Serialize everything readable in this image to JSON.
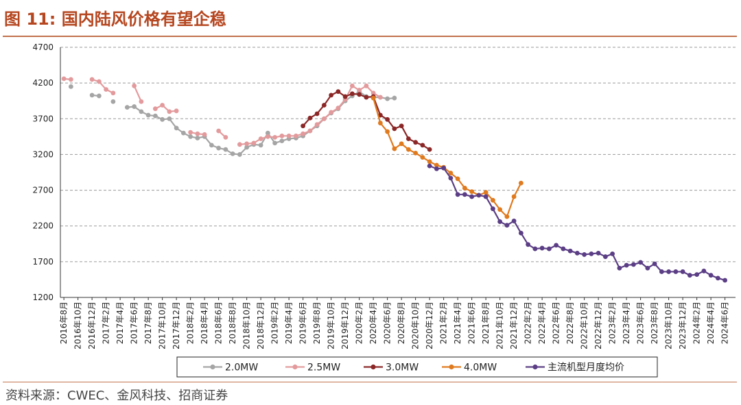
{
  "header": {
    "title": "图 11:  国内陆风价格有望企稳"
  },
  "footer": {
    "source": "资料来源：CWEC、金风科技、招商证券"
  },
  "chart_data": {
    "type": "line",
    "y_ticks": [
      "4700",
      "4200",
      "3700",
      "3200",
      "2700",
      "2200",
      "1700",
      "1200"
    ],
    "x_tick_labels": [
      "2016年8月",
      "2016年10月",
      "2016年12月",
      "2017年2月",
      "2017年4月",
      "2017年6月",
      "2017年8月",
      "2017年10月",
      "2017年12月",
      "2018年2月",
      "2018年4月",
      "2018年6月",
      "2018年8月",
      "2018年10月",
      "2018年12月",
      "2019年2月",
      "2019年4月",
      "2019年6月",
      "2019年8月",
      "2019年10月",
      "2019年12月",
      "2020年2月",
      "2020年4月",
      "2020年6月",
      "2020年8月",
      "2020年10月",
      "2020年12月",
      "2021年2月",
      "2021年4月",
      "2021年6月",
      "2021年8月",
      "2021年10月",
      "2021年12月",
      "2022年2月",
      "2022年4月",
      "2022年6月",
      "2022年8月",
      "2022年10月",
      "2022年12月",
      "2023年2月",
      "2023年4月",
      "2023年6月",
      "2023年8月",
      "2023年10月",
      "2023年12月",
      "2024年2月",
      "2024年4月",
      "2024年6月"
    ],
    "ylim": [
      1200,
      4700
    ],
    "grid": true,
    "legend_position": "bottom",
    "series": [
      {
        "name": "2.0MW",
        "color": "#a5a5a5",
        "start": 0,
        "values": [
          null,
          4150,
          null,
          null,
          4030,
          4020,
          null,
          3940,
          null,
          3860,
          3870,
          3800,
          3750,
          3740,
          3690,
          3700,
          3570,
          3500,
          3450,
          3430,
          3450,
          3330,
          3290,
          3270,
          3210,
          3200,
          3300,
          3340,
          3330,
          3500,
          3360,
          3390,
          3420,
          3430,
          3460,
          3530,
          3600,
          3700,
          3780,
          3840,
          3950,
          4020,
          4080,
          4010,
          4000,
          4000,
          3980,
          3990
        ]
      },
      {
        "name": "2.5MW",
        "color": "#e39a9c",
        "start": 0,
        "values": [
          4260,
          4250,
          null,
          null,
          4250,
          4220,
          4110,
          4060,
          null,
          null,
          4160,
          3940,
          null,
          3840,
          3890,
          3800,
          3810,
          null,
          3510,
          3490,
          3480,
          null,
          3530,
          3440,
          null,
          3340,
          3350,
          3360,
          3420,
          3450,
          3440,
          3460,
          3460,
          3460,
          3490,
          3530,
          3620,
          3700,
          3790,
          3850,
          3970,
          4160,
          4100,
          4160,
          4060,
          4000
        ]
      },
      {
        "name": "3.0MW",
        "color": "#8b2727",
        "start": 34,
        "values": [
          3600,
          3710,
          3770,
          3890,
          4030,
          4080,
          4010,
          4050,
          4040,
          4000,
          4010,
          3750,
          3690,
          3560,
          3600,
          3420,
          3370,
          3330,
          3270
        ]
      },
      {
        "name": "4.0MW",
        "color": "#e07a1f",
        "start": 44,
        "values": [
          3990,
          3640,
          3520,
          3280,
          3350,
          3270,
          3220,
          3160,
          3100,
          3050,
          3020,
          2940,
          2860,
          2730,
          2680,
          2630,
          2670,
          2560,
          2430,
          2330,
          2610,
          2800
        ]
      },
      {
        "name": "主流机型月度均价",
        "color": "#5b3e85",
        "start": 52,
        "values": [
          3040,
          3000,
          3010,
          2870,
          2640,
          2640,
          2610,
          2630,
          2610,
          2440,
          2260,
          2210,
          2270,
          2100,
          1940,
          1880,
          1890,
          1880,
          1930,
          1880,
          1850,
          1820,
          1800,
          1810,
          1820,
          1770,
          1810,
          1610,
          1650,
          1660,
          1690,
          1610,
          1670,
          1560,
          1560,
          1560,
          1560,
          1510,
          1520,
          1570,
          1510,
          1470,
          1440
        ]
      }
    ]
  }
}
